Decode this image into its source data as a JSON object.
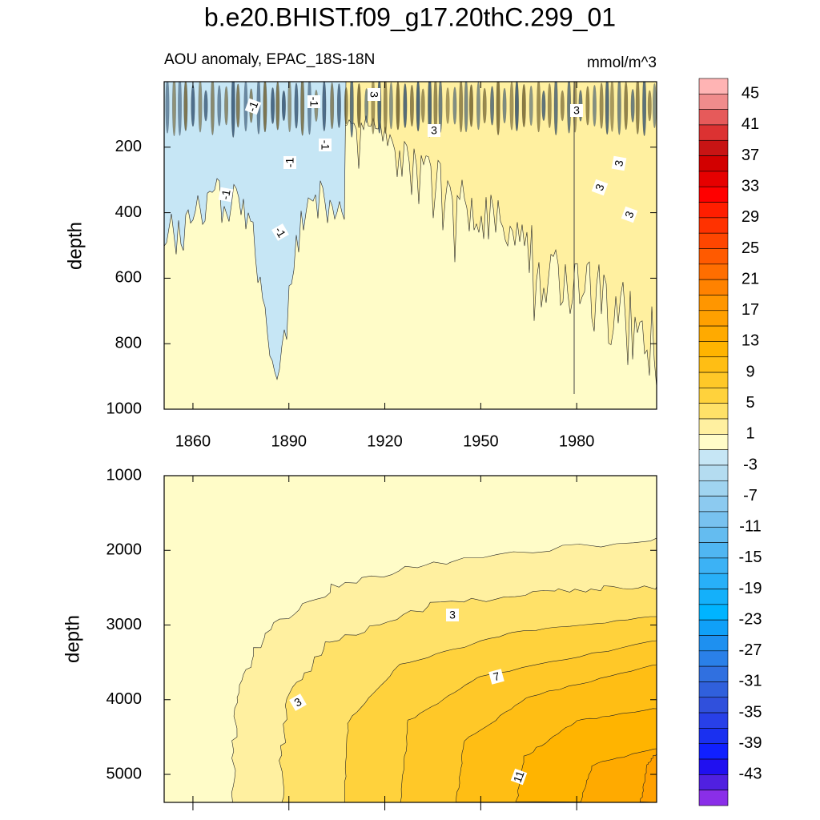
{
  "title": "b.e20.BHIST.f09_g17.20thC.299_01",
  "chart_data": [
    {
      "type": "contour",
      "subtitle": "AOU anomaly, EPAC_18S-18N",
      "units": "mmol/m^3",
      "ylabel": "depth",
      "xlim": [
        1851,
        2005
      ],
      "xticks": [
        1860,
        1890,
        1920,
        1950,
        1980
      ],
      "show_xtick_labels": true,
      "ylim": [
        0,
        1000
      ],
      "y_reversed": true,
      "yticks": [
        200,
        400,
        600,
        800,
        1000
      ],
      "contour_labels": [
        -1,
        -1,
        3,
        -1,
        3,
        -1,
        -1,
        -1,
        3,
        3,
        3,
        3
      ]
    },
    {
      "type": "contour",
      "ylabel": "depth",
      "xlim": [
        1851,
        2005
      ],
      "xticks": [
        1860,
        1890,
        1920,
        1950,
        1980
      ],
      "show_xtick_labels": false,
      "ylim": [
        1000,
        5375
      ],
      "y_reversed": true,
      "yticks": [
        1000,
        2000,
        3000,
        4000,
        5000
      ],
      "contour_labels": [
        3,
        3,
        7,
        11
      ]
    }
  ],
  "colorbar": {
    "ticks": [
      45,
      41,
      37,
      33,
      29,
      25,
      21,
      17,
      13,
      9,
      5,
      1,
      -3,
      -7,
      -11,
      -15,
      -19,
      -23,
      -27,
      -31,
      -35,
      -39,
      -43
    ],
    "colors": [
      "#ffb4b4",
      "#f08c8c",
      "#e65a5a",
      "#dc3232",
      "#c81414",
      "#d20000",
      "#e60000",
      "#ff0000",
      "#ff1e00",
      "#ff3200",
      "#ff4600",
      "#ff5a00",
      "#ff6e00",
      "#ff8200",
      "#ff9600",
      "#ffa000",
      "#ffaa00",
      "#ffb400",
      "#ffbe14",
      "#ffc828",
      "#ffd23c",
      "#ffe168",
      "#fff0a0",
      "#fffcc8",
      "#c6e6f5",
      "#b4dcf0",
      "#a0d4f0",
      "#8ccaf0",
      "#78c2f0",
      "#64bcf0",
      "#50b6f2",
      "#3cb2f5",
      "#28b0f8",
      "#14b0fa",
      "#00b4ff",
      "#10a0f8",
      "#1e90f0",
      "#2a80e8",
      "#3070e0",
      "#3060dc",
      "#3050dc",
      "#2840e8",
      "#1a30f0",
      "#1020ff",
      "#2010f0",
      "#5020e0",
      "#8a2ee8"
    ]
  }
}
